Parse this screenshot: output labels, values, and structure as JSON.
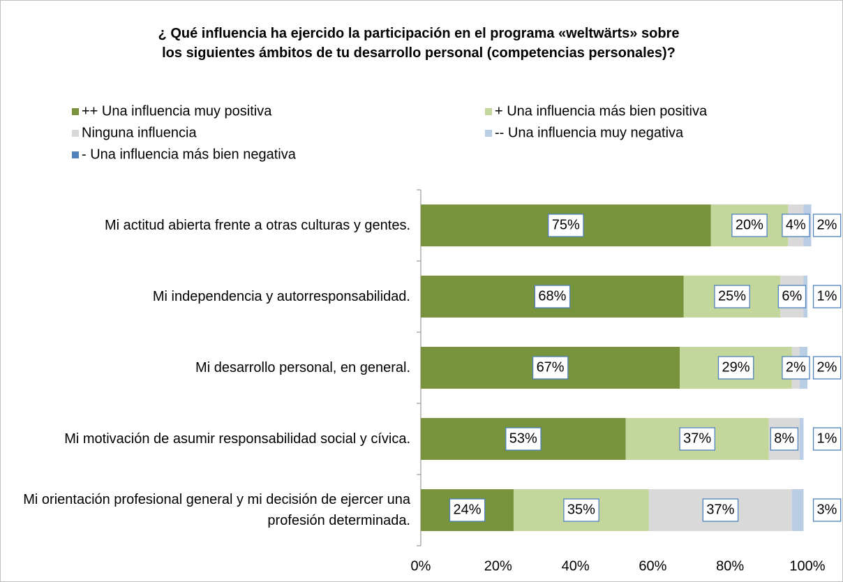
{
  "chart_data": {
    "type": "stacked-barh",
    "title": "¿ Qué influencia ha ejercido la participación en el programa «weltwärts» sobre los siguientes ámbitos de tu desarrollo personal (competencias personales)?",
    "categories": [
      "Mi actitud abierta frente a otras culturas y gentes.",
      "Mi independencia y autorresponsabilidad.",
      "Mi desarrollo personal, en general.",
      "Mi motivación de asumir responsabilidad social y cívica.",
      "Mi orientación profesional general y mi decisión de ejercer una profesión determinada."
    ],
    "series": [
      {
        "name": "++ Una influencia muy positiva",
        "color": "#77933c",
        "values": [
          75,
          68,
          67,
          53,
          24
        ],
        "value_labels": [
          "75%",
          "68%",
          "67%",
          "53%",
          "24%"
        ]
      },
      {
        "name": "+ Una influencia más bien positiva",
        "color": "#c3d69b",
        "values": [
          20,
          25,
          29,
          37,
          35
        ],
        "value_labels": [
          "20%",
          "25%",
          "29%",
          "37%",
          "35%"
        ]
      },
      {
        "name": "Ninguna influencia",
        "color": "#d9d9d9",
        "values": [
          4,
          6,
          2,
          8,
          37
        ],
        "value_labels": [
          "4%",
          "6%",
          "2%",
          "8%",
          "37%"
        ]
      },
      {
        "name": "-- Una influencia muy negativa",
        "color": "#b9cde5",
        "values": [
          2,
          1,
          2,
          1,
          3
        ],
        "value_labels": [
          "2%",
          "1%",
          "2%",
          "1%",
          "3%"
        ]
      },
      {
        "name": "- Una influencia más bien negativa",
        "color": "#4f81bd",
        "values": [
          null,
          null,
          null,
          null,
          null
        ]
      }
    ],
    "xlim": [
      0,
      100
    ],
    "xticks": [
      {
        "value": 0,
        "label": "0%"
      },
      {
        "value": 20,
        "label": "20%"
      },
      {
        "value": 40,
        "label": "40%"
      },
      {
        "value": 60,
        "label": "60%"
      },
      {
        "value": 80,
        "label": "80%"
      },
      {
        "value": 100,
        "label": "100%"
      }
    ]
  }
}
